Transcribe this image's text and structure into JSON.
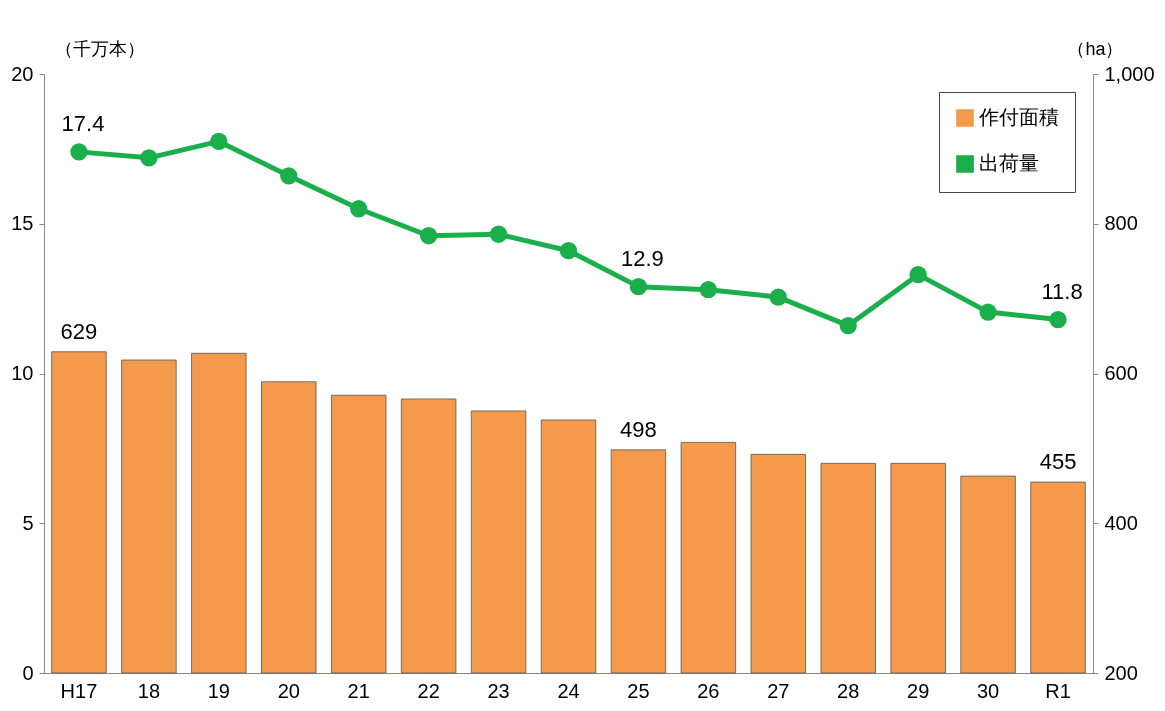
{
  "chart_data": {
    "type": "bar",
    "ylabel": "（千万本）",
    "y2label": "（ha）",
    "categories": [
      "H17",
      "18",
      "19",
      "20",
      "21",
      "22",
      "23",
      "24",
      "25",
      "26",
      "27",
      "28",
      "29",
      "30",
      "R1"
    ],
    "series": [
      {
        "name": "作付面積",
        "axis": "y2",
        "color": "#f59a4a",
        "values": [
          629,
          618,
          627,
          589,
          571,
          566,
          550,
          538,
          498,
          508,
          492,
          480,
          480,
          463,
          455
        ],
        "value_labels": [
          "629",
          null,
          null,
          null,
          null,
          null,
          null,
          null,
          "498",
          null,
          null,
          null,
          null,
          null,
          "455"
        ]
      },
      {
        "name": "出荷量",
        "type": "line",
        "axis": "y",
        "color": "#1aaf4b",
        "marker": "circle",
        "values": [
          17.4,
          17.2,
          17.75,
          16.6,
          15.5,
          14.6,
          14.65,
          14.1,
          12.9,
          12.8,
          12.55,
          11.6,
          13.3,
          12.05,
          11.8
        ],
        "value_labels": [
          "17.4",
          null,
          null,
          null,
          null,
          null,
          null,
          null,
          "12.9",
          null,
          null,
          null,
          null,
          null,
          "11.8"
        ]
      }
    ],
    "ylim": [
      0,
      20
    ],
    "yticks": [
      0,
      5,
      10,
      15,
      20
    ],
    "y2lim": [
      200,
      1000
    ],
    "y2ticks": [
      200,
      400,
      600,
      800,
      {
        "value": 1000,
        "label": "1,000"
      }
    ],
    "legend": "top right"
  }
}
